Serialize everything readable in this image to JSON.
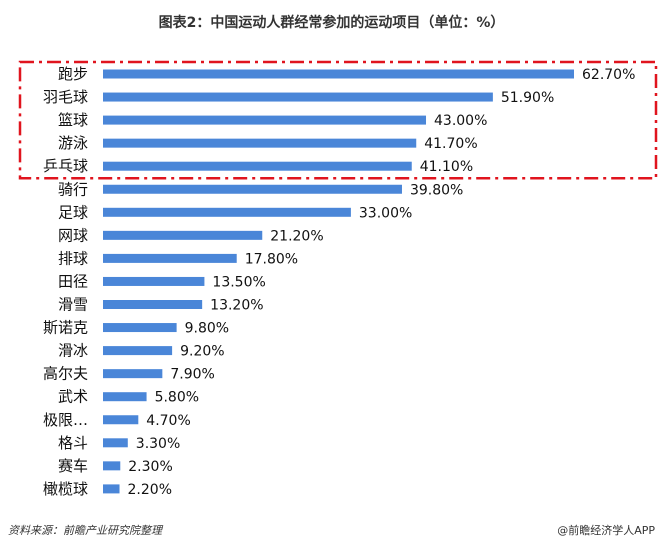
{
  "chart_data": {
    "type": "bar",
    "orientation": "horizontal",
    "title": "图表2：中国运动人群经常参加的运动项目（单位：%）",
    "categories": [
      "跑步",
      "羽毛球",
      "篮球",
      "游泳",
      "乒乓球",
      "骑行",
      "足球",
      "网球",
      "排球",
      "田径",
      "滑雪",
      "斯诺克",
      "滑冰",
      "高尔夫",
      "武术",
      "极限…",
      "格斗",
      "赛车",
      "橄榄球"
    ],
    "values": [
      62.7,
      51.9,
      43.0,
      41.7,
      41.1,
      39.8,
      33.0,
      21.2,
      17.8,
      13.5,
      13.2,
      9.8,
      9.2,
      7.9,
      5.8,
      4.7,
      3.3,
      2.3,
      2.2
    ],
    "value_labels": [
      "62.70%",
      "51.90%",
      "43.00%",
      "41.70%",
      "41.10%",
      "39.80%",
      "33.00%",
      "21.20%",
      "17.80%",
      "13.50%",
      "13.20%",
      "9.80%",
      "9.20%",
      "7.90%",
      "5.80%",
      "4.70%",
      "3.30%",
      "2.30%",
      "2.20%"
    ],
    "xlim": [
      0,
      65
    ],
    "grid": false,
    "legend": "none",
    "highlight": {
      "categories": [
        "跑步",
        "羽毛球",
        "篮球",
        "游泳",
        "乒乓球"
      ],
      "style": "red dash-dot box"
    }
  },
  "colors": {
    "bar": "#4a86d8",
    "highlight_border": "#e0141e",
    "text": "#111111"
  },
  "footer": {
    "source": "资料来源：前瞻产业研究院整理",
    "credit": "@前瞻经济学人APP"
  }
}
